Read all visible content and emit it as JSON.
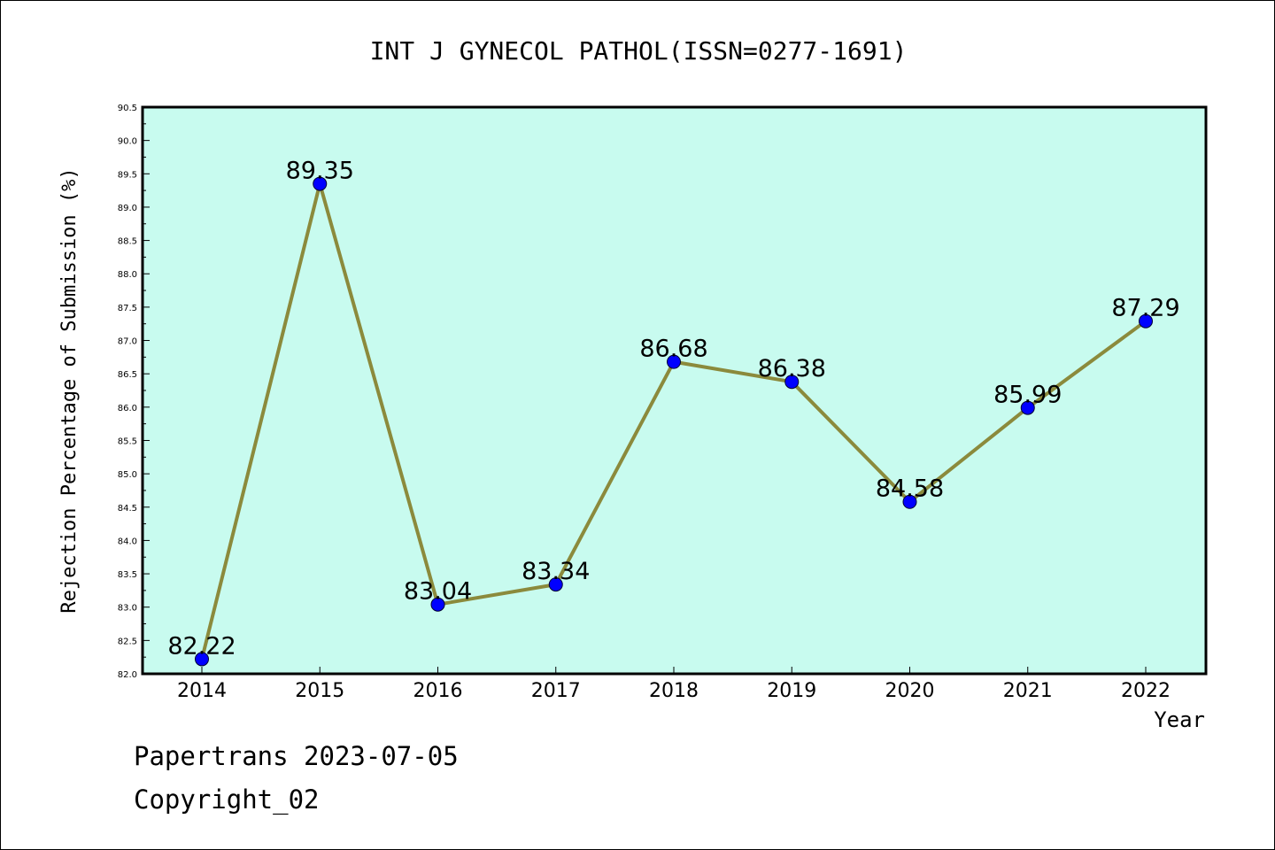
{
  "chart_data": {
    "type": "line",
    "title": "INT J GYNECOL PATHOL(ISSN=0277-1691)",
    "xlabel": "Year",
    "ylabel": "Rejection Percentage of Submission (%)",
    "categories": [
      "2014",
      "2015",
      "2016",
      "2017",
      "2018",
      "2019",
      "2020",
      "2021",
      "2022"
    ],
    "values": [
      82.22,
      89.35,
      83.04,
      83.34,
      86.68,
      86.38,
      84.58,
      85.99,
      87.29
    ],
    "data_labels": [
      "82.22",
      "89.35",
      "83.04",
      "83.34",
      "86.68",
      "86.38",
      "84.58",
      "85.99",
      "87.29"
    ],
    "ylim": [
      82.0,
      90.5
    ],
    "yticks": [
      "82.0",
      "82.5",
      "83.0",
      "83.5",
      "84.0",
      "84.5",
      "85.0",
      "85.5",
      "86.0",
      "86.5",
      "87.0",
      "87.5",
      "88.0",
      "88.5",
      "89.0",
      "89.5",
      "90.0",
      "90.5"
    ],
    "grid": false,
    "colors": {
      "plot_background": "#c8fbef",
      "line": "#8b8a3c",
      "marker": "#0000ff"
    }
  },
  "footer": {
    "line1": "Papertrans 2023-07-05",
    "line2": "Copyright_02"
  }
}
